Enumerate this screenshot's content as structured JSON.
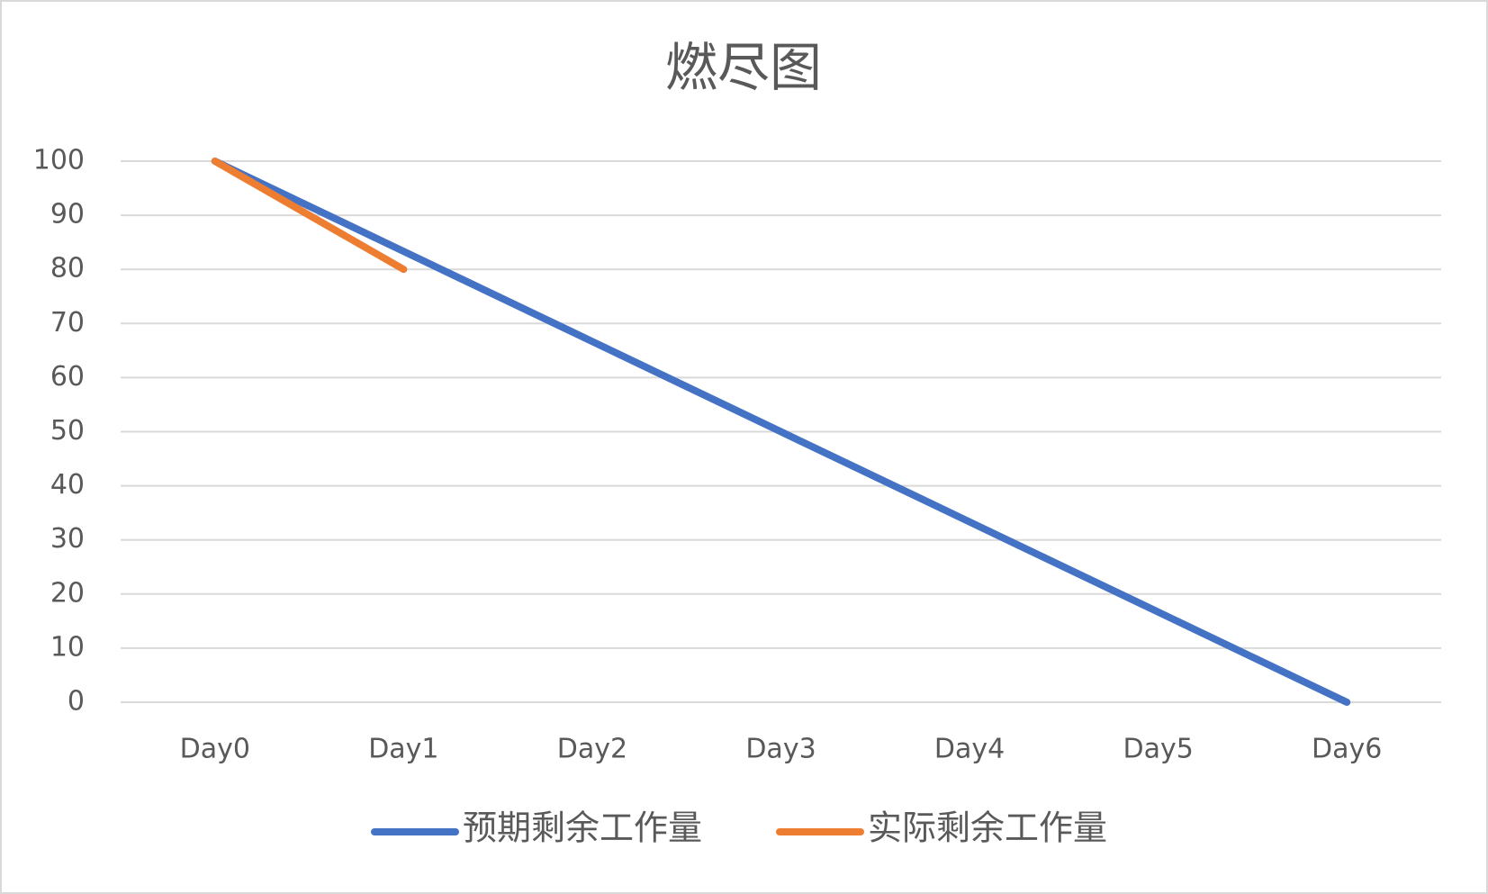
{
  "chart_data": {
    "type": "line",
    "title": "燃尽图",
    "categories": [
      "Day0",
      "Day1",
      "Day2",
      "Day3",
      "Day4",
      "Day5",
      "Day6"
    ],
    "series": [
      {
        "name": "预期剩余工作量",
        "color": "#4472c4",
        "values": [
          100,
          83.33,
          66.67,
          50,
          33.33,
          16.67,
          0
        ]
      },
      {
        "name": "实际剩余工作量",
        "color": "#ed7d31",
        "values": [
          100,
          80,
          null,
          null,
          null,
          null,
          null
        ]
      }
    ],
    "ylim": [
      0,
      100
    ],
    "yticks": [
      0,
      10,
      20,
      30,
      40,
      50,
      60,
      70,
      80,
      90,
      100
    ],
    "grid": true,
    "legend": "bottom"
  }
}
